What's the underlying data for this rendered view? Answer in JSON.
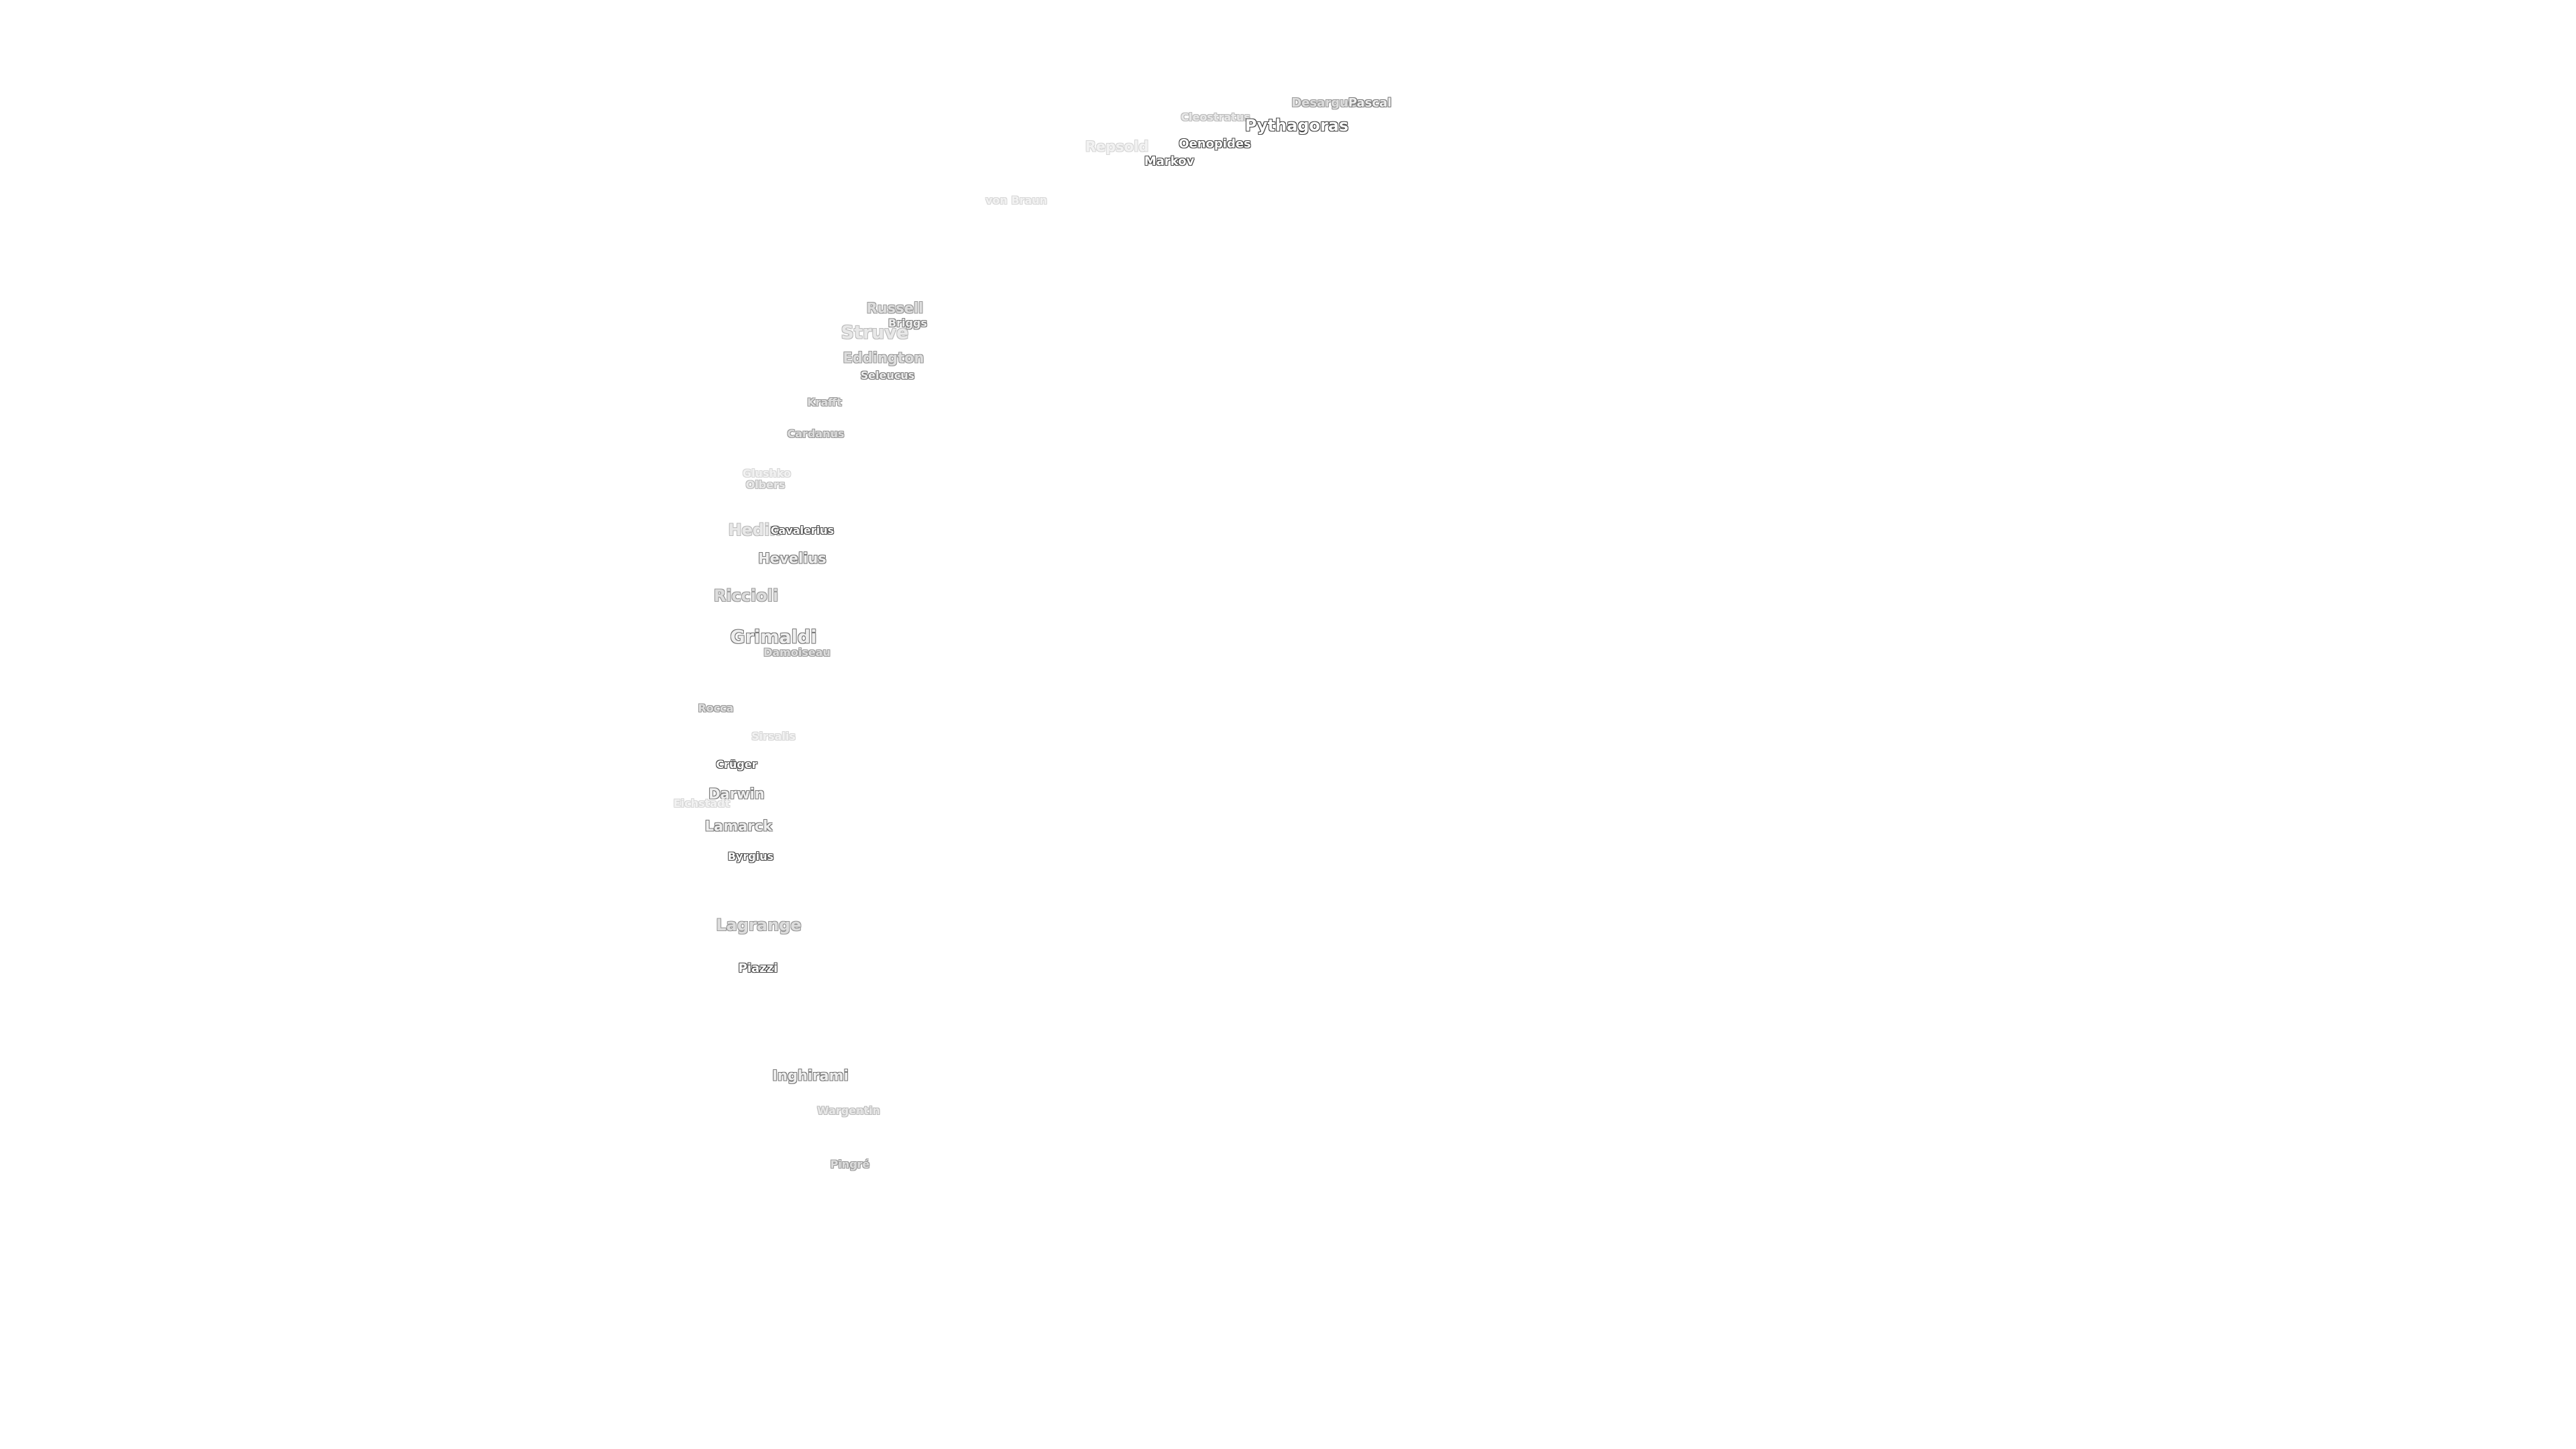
{
  "labels": [
    {
      "key": "desargues",
      "text": "Desargues"
    },
    {
      "key": "pascal",
      "text": "Pascal"
    },
    {
      "key": "cleostratus",
      "text": "Cleostratus"
    },
    {
      "key": "pythagoras",
      "text": "Pythagoras"
    },
    {
      "key": "repsold",
      "text": "Repsold"
    },
    {
      "key": "oenopides",
      "text": "Oenopides"
    },
    {
      "key": "markov",
      "text": "Markov"
    },
    {
      "key": "von-braun",
      "text": "von Braun"
    },
    {
      "key": "russell",
      "text": "Russell"
    },
    {
      "key": "briggs",
      "text": "Briggs"
    },
    {
      "key": "struve",
      "text": "Struve"
    },
    {
      "key": "eddington",
      "text": "Eddington"
    },
    {
      "key": "seleucus",
      "text": "Seleucus"
    },
    {
      "key": "krafft",
      "text": "Krafft"
    },
    {
      "key": "cardanus",
      "text": "Cardanus"
    },
    {
      "key": "glushko",
      "text": "Glushko"
    },
    {
      "key": "olbers",
      "text": "Olbers"
    },
    {
      "key": "hedin",
      "text": "Hedin"
    },
    {
      "key": "cavalerius",
      "text": "Cavalerius"
    },
    {
      "key": "hevelius",
      "text": "Hevelius"
    },
    {
      "key": "riccioli",
      "text": "Riccioli"
    },
    {
      "key": "grimaldi",
      "text": "Grimaldi"
    },
    {
      "key": "damoiseau",
      "text": "Damoiseau"
    },
    {
      "key": "rocca",
      "text": "Rocca"
    },
    {
      "key": "sirsalis",
      "text": "Sirsalis"
    },
    {
      "key": "cruger",
      "text": "Crüger"
    },
    {
      "key": "darwin",
      "text": "Darwin"
    },
    {
      "key": "eichstadt",
      "text": "Eichstadt"
    },
    {
      "key": "lamarck",
      "text": "Lamarck"
    },
    {
      "key": "byrgius",
      "text": "Byrgius"
    },
    {
      "key": "lagrange",
      "text": "Lagrange"
    },
    {
      "key": "piazzi",
      "text": "Piazzi"
    },
    {
      "key": "inghirami",
      "text": "Inghirami"
    },
    {
      "key": "wargentin",
      "text": "Wargentin"
    },
    {
      "key": "pingre",
      "text": "Pingré"
    }
  ]
}
